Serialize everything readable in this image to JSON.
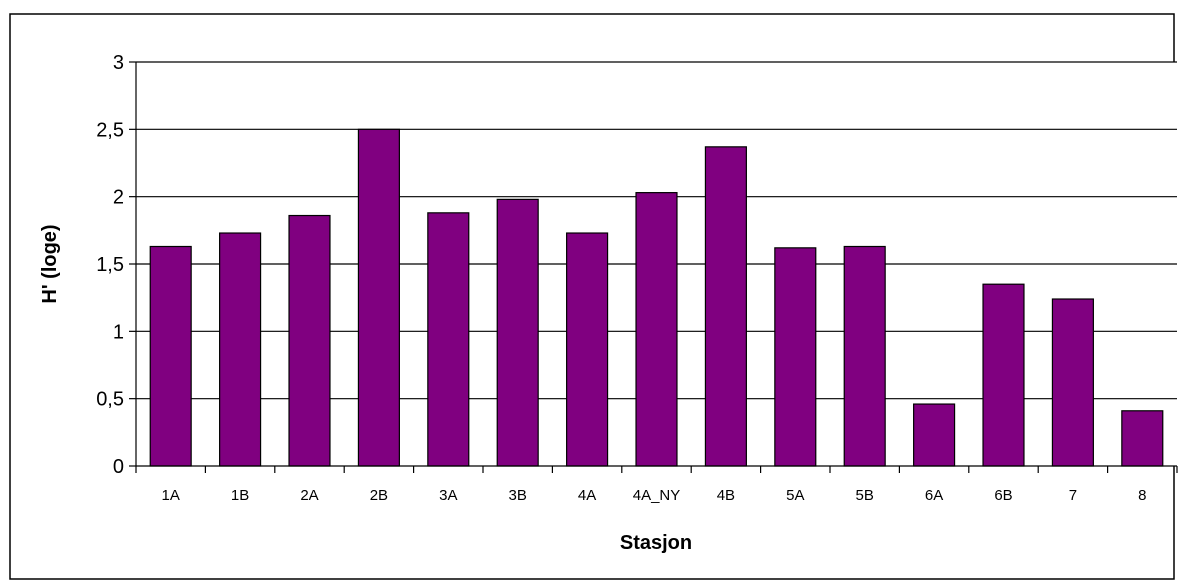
{
  "chart_data": {
    "type": "bar",
    "title": "",
    "xlabel": "Stasjon",
    "ylabel": "H' (loge)",
    "categories": [
      "1A",
      "1B",
      "2A",
      "2B",
      "3A",
      "3B",
      "4A",
      "4A_NY",
      "4B",
      "5A",
      "5B",
      "6A",
      "6B",
      "7",
      "8"
    ],
    "values": [
      1.63,
      1.73,
      1.86,
      2.5,
      1.88,
      1.98,
      1.73,
      2.03,
      2.37,
      1.62,
      1.63,
      0.46,
      1.35,
      1.24,
      0.41
    ],
    "ylim": [
      0,
      3
    ],
    "yticks": [
      0,
      0.5,
      1,
      1.5,
      2,
      2.5,
      3
    ],
    "ytick_labels": [
      "0",
      "0,5",
      "1",
      "1,5",
      "2",
      "2,5",
      "3"
    ],
    "grid": true,
    "legend": "none",
    "colors": {
      "bar": "#800080",
      "bar_edge": "#000000",
      "grid": "#000000",
      "background": "#ffffff"
    }
  }
}
